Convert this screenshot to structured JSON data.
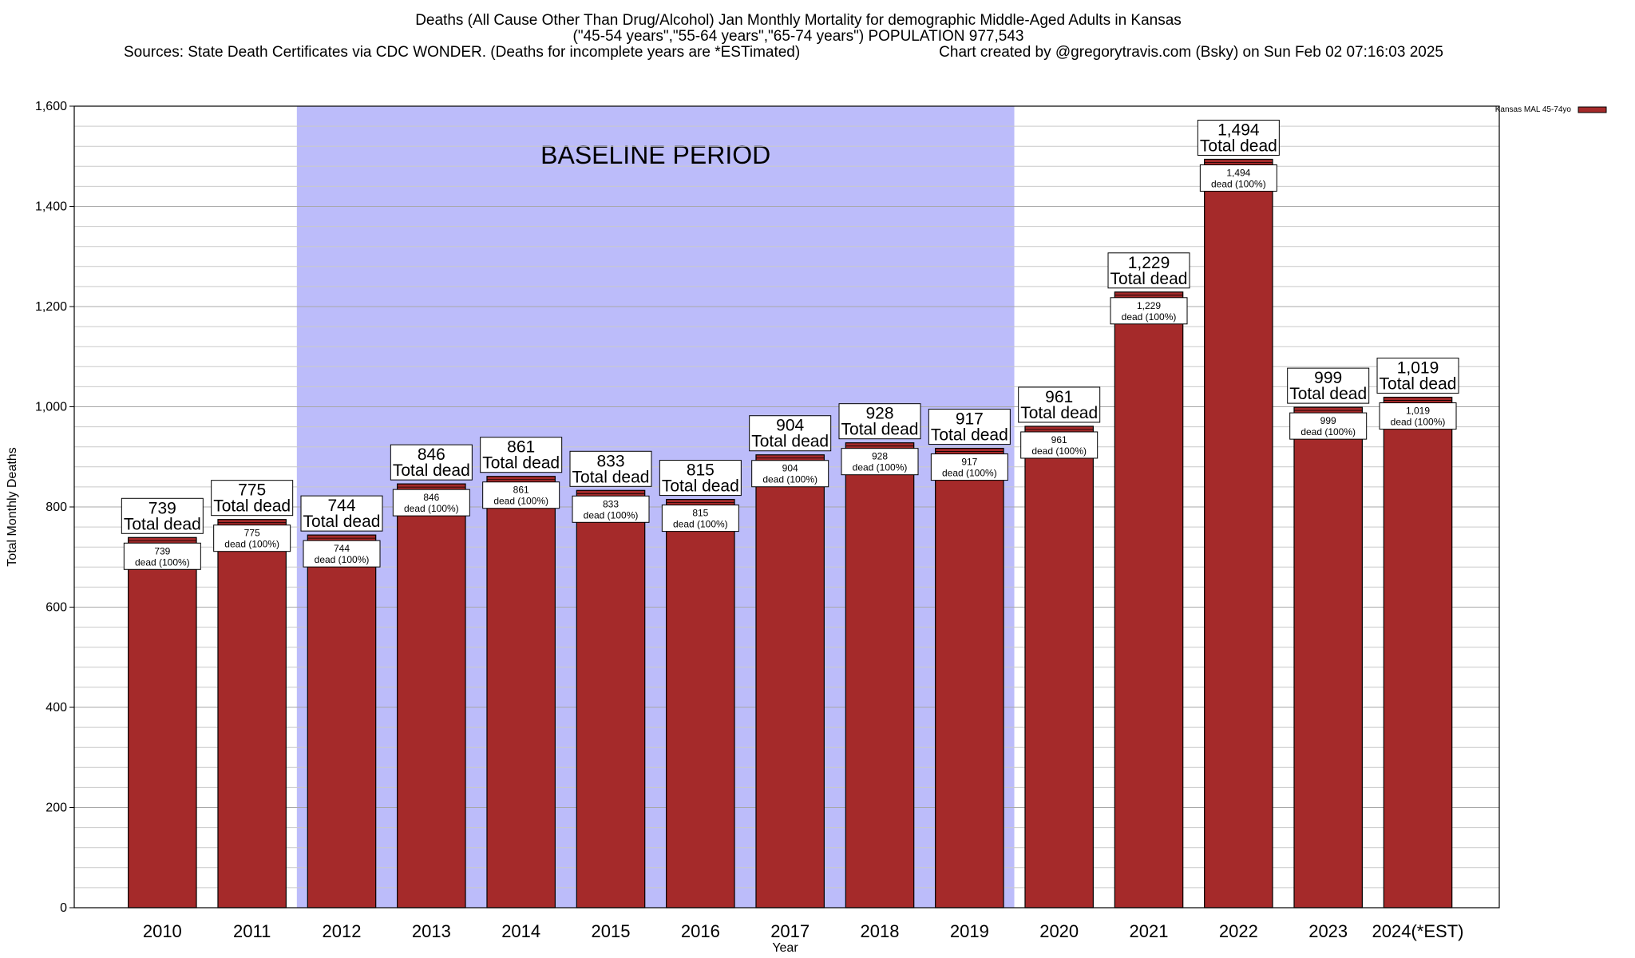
{
  "chart_data": {
    "type": "bar",
    "title_lines": [
      "Deaths (All Cause Other Than Drug/Alcohol) Jan Monthly Mortality for demographic Middle-Aged Adults in Kansas",
      "(\"45-54 years\",\"55-64 years\",\"65-74 years\") POPULATION 977,543"
    ],
    "sources_text": "Sources: State Death Certificates via CDC WONDER. (Deaths for incomplete years are *ESTimated)",
    "credit_text": "Chart created by @gregorytravis.com (Bsky) on Sun Feb 02 07:16:03 2025",
    "xlabel": "Year",
    "ylabel": "Total Monthly Deaths",
    "ylim": [
      0,
      1600
    ],
    "y_ticks": [
      0,
      200,
      400,
      600,
      800,
      1000,
      1200,
      1400,
      1600
    ],
    "y_tick_labels": [
      "0",
      "200",
      "400",
      "600",
      "800",
      "1,000",
      "1,200",
      "1,400",
      "1,600"
    ],
    "y_minor_step": 40,
    "grid": true,
    "categories": [
      "2010",
      "2011",
      "2012",
      "2013",
      "2014",
      "2015",
      "2016",
      "2017",
      "2018",
      "2019",
      "2020",
      "2021",
      "2022",
      "2023",
      "2024(*EST)"
    ],
    "series": [
      {
        "name": "Kansas MAL 45-74yo",
        "color": "#a52a2a",
        "values": [
          739,
          775,
          744,
          846,
          861,
          833,
          815,
          904,
          928,
          917,
          961,
          1229,
          1494,
          999,
          1019
        ]
      }
    ],
    "value_labels": [
      "739",
      "775",
      "744",
      "846",
      "861",
      "833",
      "815",
      "904",
      "928",
      "917",
      "961",
      "1,229",
      "1,494",
      "999",
      "1,019"
    ],
    "outer_label_suffix": "Total dead",
    "inner_label_suffix": "dead (100%)",
    "baseline": {
      "label": "BASELINE PERIOD",
      "start_category": "2012",
      "end_category": "2019",
      "color": "#bcbcfa"
    },
    "legend": {
      "position": "top-right",
      "entries": [
        "Kansas MAL 45-74yo"
      ]
    }
  }
}
